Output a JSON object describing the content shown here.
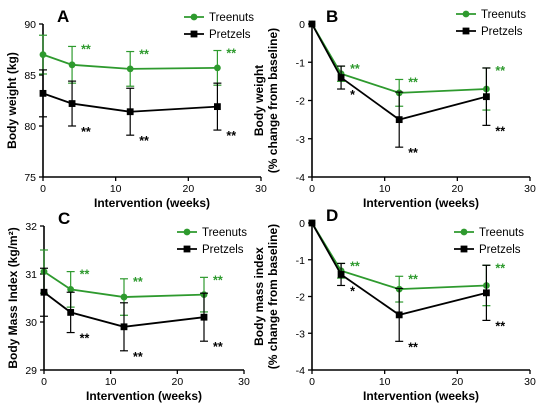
{
  "colors": {
    "treenuts": "#2e9a2e",
    "pretzels": "#000000",
    "axis": "#000000"
  },
  "chart_data": [
    {
      "panel": "A",
      "type": "line",
      "xlabel": "Intervention (weeks)",
      "ylabel": "Body weight (kg)",
      "xlim": [
        0,
        30
      ],
      "ylim": [
        75,
        90
      ],
      "xticks": [
        0,
        10,
        20,
        30
      ],
      "yticks": [
        75,
        80,
        85,
        90
      ],
      "legend_position": "top-right",
      "series": [
        {
          "name": "Treenuts",
          "color_key": "treenuts",
          "marker": "circle",
          "x": [
            0,
            4,
            12,
            24
          ],
          "y": [
            87.0,
            86.0,
            85.6,
            85.7
          ],
          "err": [
            1.9,
            1.8,
            1.7,
            1.7
          ],
          "sig": [
            {
              "x": 4,
              "text": "**"
            },
            {
              "x": 12,
              "text": "**"
            },
            {
              "x": 24,
              "text": "**"
            }
          ]
        },
        {
          "name": "Pretzels",
          "color_key": "pretzels",
          "marker": "square",
          "x": [
            0,
            4,
            12,
            24
          ],
          "y": [
            83.2,
            82.2,
            81.4,
            81.9
          ],
          "err": [
            2.3,
            2.2,
            2.3,
            2.3
          ],
          "sig": [
            {
              "x": 4,
              "text": "**"
            },
            {
              "x": 12,
              "text": "**"
            },
            {
              "x": 24,
              "text": "**"
            }
          ]
        }
      ]
    },
    {
      "panel": "B",
      "type": "line",
      "xlabel": "Intervention (weeks)",
      "ylabel": "Body weight",
      "ylabel2": "(% change from baseline)",
      "xlim": [
        0,
        30
      ],
      "ylim": [
        -4,
        0
      ],
      "xticks": [
        0,
        10,
        20,
        30
      ],
      "yticks": [
        -4,
        -3,
        -2,
        -1,
        0
      ],
      "legend_position": "top-right",
      "series": [
        {
          "name": "Treenuts",
          "color_key": "treenuts",
          "marker": "circle",
          "x": [
            0,
            4,
            12,
            24
          ],
          "y": [
            0,
            -1.3,
            -1.8,
            -1.7
          ],
          "err": [
            0,
            0.2,
            0.35,
            0.55
          ],
          "sig": [
            {
              "x": 4,
              "text": "**"
            },
            {
              "x": 12,
              "text": "**"
            },
            {
              "x": 24,
              "text": "**"
            }
          ]
        },
        {
          "name": "Pretzels",
          "color_key": "pretzels",
          "marker": "square",
          "x": [
            0,
            4,
            12,
            24
          ],
          "y": [
            0,
            -1.4,
            -2.5,
            -1.9
          ],
          "err": [
            0,
            0.3,
            0.72,
            0.75
          ],
          "sig": [
            {
              "x": 4,
              "text": "*"
            },
            {
              "x": 12,
              "text": "**"
            },
            {
              "x": 24,
              "text": "**"
            }
          ]
        }
      ]
    },
    {
      "panel": "C",
      "type": "line",
      "xlabel": "Intervention (weeks)",
      "ylabel": "Body Mass Index (kg/m²)",
      "xlim": [
        0,
        30
      ],
      "ylim": [
        29,
        32
      ],
      "xticks": [
        0,
        10,
        20,
        30
      ],
      "yticks": [
        29,
        30,
        31,
        32
      ],
      "legend_position": "top-right",
      "series": [
        {
          "name": "Treenuts",
          "color_key": "treenuts",
          "marker": "circle",
          "x": [
            0,
            4,
            12,
            24
          ],
          "y": [
            31.05,
            30.68,
            30.52,
            30.57
          ],
          "err": [
            0.45,
            0.37,
            0.38,
            0.36
          ],
          "sig": [
            {
              "x": 4,
              "text": "**"
            },
            {
              "x": 12,
              "text": "**"
            },
            {
              "x": 24,
              "text": "**"
            }
          ]
        },
        {
          "name": "Pretzels",
          "color_key": "pretzels",
          "marker": "square",
          "x": [
            0,
            4,
            12,
            24
          ],
          "y": [
            30.62,
            30.2,
            29.9,
            30.1
          ],
          "err": [
            0.5,
            0.42,
            0.5,
            0.5
          ],
          "sig": [
            {
              "x": 4,
              "text": "**"
            },
            {
              "x": 12,
              "text": "**"
            },
            {
              "x": 24,
              "text": "**"
            }
          ]
        }
      ]
    },
    {
      "panel": "D",
      "type": "line",
      "xlabel": "Intervention (weeks)",
      "ylabel": "Body mass index",
      "ylabel2": "(% change from baseline)",
      "xlim": [
        0,
        30
      ],
      "ylim": [
        -4,
        0
      ],
      "xticks": [
        0,
        10,
        20,
        30
      ],
      "yticks": [
        -4,
        -3,
        -2,
        -1,
        0
      ],
      "legend_position": "top-right",
      "series": [
        {
          "name": "Treenuts",
          "color_key": "treenuts",
          "marker": "circle",
          "x": [
            0,
            4,
            12,
            24
          ],
          "y": [
            0,
            -1.3,
            -1.8,
            -1.7
          ],
          "err": [
            0,
            0.2,
            0.35,
            0.55
          ],
          "sig": [
            {
              "x": 4,
              "text": "**"
            },
            {
              "x": 12,
              "text": "**"
            },
            {
              "x": 24,
              "text": "**"
            }
          ]
        },
        {
          "name": "Pretzels",
          "color_key": "pretzels",
          "marker": "square",
          "x": [
            0,
            4,
            12,
            24
          ],
          "y": [
            0,
            -1.4,
            -2.5,
            -1.9
          ],
          "err": [
            0,
            0.3,
            0.72,
            0.75
          ],
          "sig": [
            {
              "x": 4,
              "text": "*"
            },
            {
              "x": 12,
              "text": "**"
            },
            {
              "x": 24,
              "text": "**"
            }
          ]
        }
      ]
    }
  ]
}
